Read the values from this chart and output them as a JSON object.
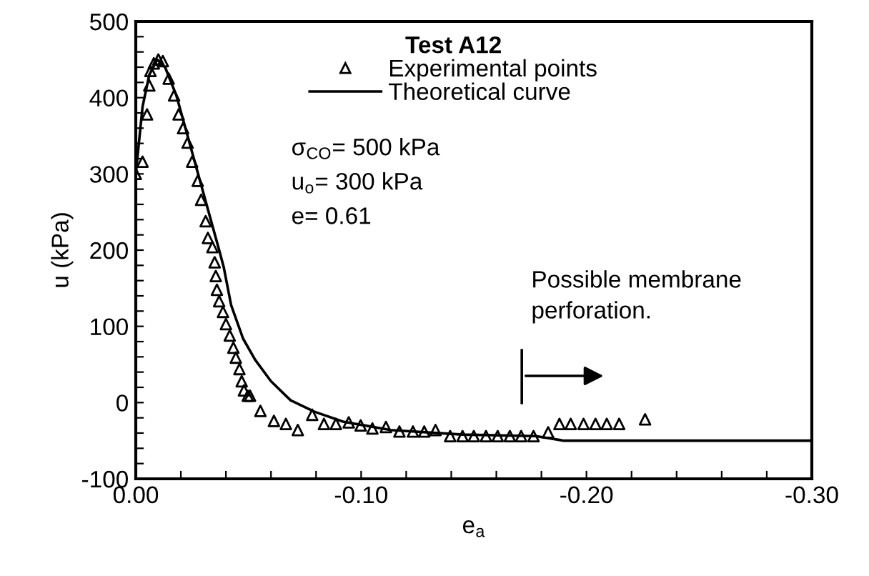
{
  "chart_data": {
    "type": "scatter",
    "xlabel": "e$_{a}$",
    "ylabel": "u (kPa)",
    "legend_title": "Test A12",
    "legend": "top",
    "grid": false,
    "xlim": [
      0,
      -0.3
    ],
    "xticks": [
      {
        "value": 0,
        "label": "0.00"
      },
      {
        "value": -0.02,
        "label": null
      },
      {
        "value": -0.04,
        "label": null
      },
      {
        "value": -0.06,
        "label": null
      },
      {
        "value": -0.08,
        "label": null
      },
      {
        "value": -0.1,
        "label": "-0.10"
      },
      {
        "value": -0.12,
        "label": null
      },
      {
        "value": -0.14,
        "label": null
      },
      {
        "value": -0.16,
        "label": null
      },
      {
        "value": -0.18,
        "label": null
      },
      {
        "value": -0.2,
        "label": "-0.20"
      },
      {
        "value": -0.22,
        "label": null
      },
      {
        "value": -0.24,
        "label": null
      },
      {
        "value": -0.26,
        "label": null
      },
      {
        "value": -0.28,
        "label": null
      },
      {
        "value": -0.3,
        "label": "-0.30"
      }
    ],
    "ylim": [
      -100,
      500
    ],
    "yticks": [
      -100,
      {
        "value": -80,
        "label": null
      },
      {
        "value": -60,
        "label": null
      },
      {
        "value": -40,
        "label": null
      },
      {
        "value": -20,
        "label": null
      },
      0,
      {
        "value": 20,
        "label": null
      },
      {
        "value": 40,
        "label": null
      },
      {
        "value": 60,
        "label": null
      },
      {
        "value": 80,
        "label": null
      },
      100,
      {
        "value": 120,
        "label": null
      },
      {
        "value": 140,
        "label": null
      },
      {
        "value": 160,
        "label": null
      },
      {
        "value": 180,
        "label": null
      },
      200,
      {
        "value": 220,
        "label": null
      },
      {
        "value": 240,
        "label": null
      },
      {
        "value": 260,
        "label": null
      },
      {
        "value": 280,
        "label": null
      },
      300,
      {
        "value": 320,
        "label": null
      },
      {
        "value": 340,
        "label": null
      },
      {
        "value": 360,
        "label": null
      },
      {
        "value": 380,
        "label": null
      },
      400,
      {
        "value": 420,
        "label": null
      },
      {
        "value": 440,
        "label": null
      },
      {
        "value": 460,
        "label": null
      },
      {
        "value": 480,
        "label": null
      },
      500
    ],
    "series": [
      {
        "name": "Experimental points",
        "marker": "triangle",
        "color": "#000000",
        "x": [
          0.0,
          -0.003,
          -0.005,
          -0.006,
          -0.0065,
          -0.008,
          -0.01,
          -0.012,
          -0.0146,
          -0.017,
          -0.019,
          -0.021,
          -0.023,
          -0.025,
          -0.0275,
          -0.029,
          -0.031,
          -0.032,
          -0.034,
          -0.035,
          -0.0355,
          -0.036,
          -0.037,
          -0.0387,
          -0.04,
          -0.0417,
          -0.0433,
          -0.0444,
          -0.046,
          -0.047,
          -0.048,
          -0.0497,
          -0.0507,
          -0.0553,
          -0.0613,
          -0.0666,
          -0.0719,
          -0.0783,
          -0.0835,
          -0.0888,
          -0.0945,
          -0.0998,
          -0.105,
          -0.111,
          -0.117,
          -0.123,
          -0.128,
          -0.133,
          -0.1395,
          -0.145,
          -0.15,
          -0.1554,
          -0.1606,
          -0.166,
          -0.171,
          -0.1765,
          -0.183,
          -0.188,
          -0.193,
          -0.1987,
          -0.204,
          -0.209,
          -0.2145,
          -0.226
        ],
        "values": [
          300,
          316,
          378,
          416,
          435,
          445,
          450,
          448,
          425,
          403,
          378,
          360,
          341,
          316,
          291,
          266,
          238,
          216,
          204,
          184,
          166,
          148,
          133,
          119,
          103,
          88,
          72,
          59,
          44,
          28,
          16,
          9,
          9,
          -11,
          -24,
          -28,
          -36,
          -16,
          -28,
          -28,
          -26,
          -30,
          -34,
          -32,
          -38,
          -38,
          -38,
          -36,
          -44,
          -44,
          -44,
          -44,
          -44,
          -44,
          -44,
          -44,
          -39,
          -28,
          -28,
          -28,
          -28,
          -28,
          -28,
          -22
        ]
      },
      {
        "name": "Theoretical curve",
        "type": "line",
        "marker": "none",
        "line_style": "solid",
        "color": "#000000",
        "x": [
          0.0,
          -0.003,
          -0.006,
          -0.0095,
          -0.013,
          -0.018,
          -0.0285,
          -0.037,
          -0.039,
          -0.0423,
          -0.0476,
          -0.053,
          -0.06,
          -0.0687,
          -0.0793,
          -0.092,
          -0.113,
          -0.145,
          -0.1775,
          -0.188,
          -0.19,
          -0.3
        ],
        "values": [
          300,
          388,
          430,
          450,
          440,
          403,
          291,
          200,
          178,
          128,
          84,
          56,
          28,
          3,
          -12,
          -25,
          -36,
          -42,
          -44,
          -49,
          -50,
          -50
        ]
      }
    ],
    "annotations": [
      "σ$_{CO}$= 500 kPa",
      "u$_{o}$= 300 kPa",
      "e= 0.61",
      "Possible membrane\nperforation."
    ]
  }
}
